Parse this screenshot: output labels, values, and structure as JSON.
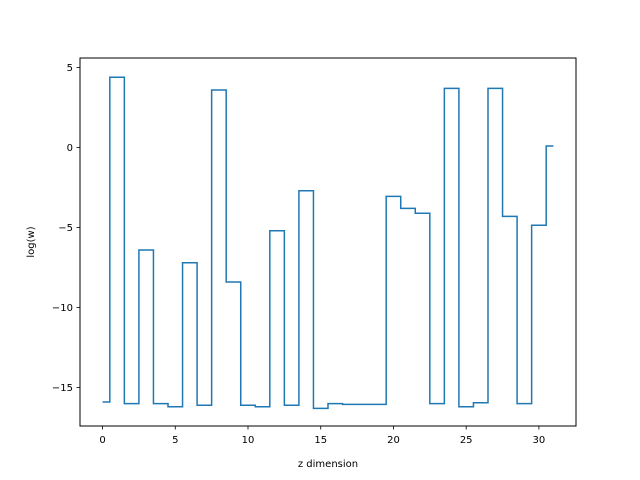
{
  "chart_data": {
    "type": "line",
    "drawstyle": "steps-mid",
    "xlabel": "z dimension",
    "ylabel": "log(w)",
    "xlim": [
      -1.55,
      32.55
    ],
    "ylim": [
      -17.4,
      5.6
    ],
    "xticks": [
      0,
      5,
      10,
      15,
      20,
      25,
      30
    ],
    "yticks": [
      5,
      0,
      -5,
      -10,
      -15
    ],
    "xtick_labels": [
      "0",
      "5",
      "10",
      "15",
      "20",
      "25",
      "30"
    ],
    "ytick_labels": [
      "5",
      "0",
      "−5",
      "−10",
      "−15"
    ],
    "grid": false,
    "series": [
      {
        "color": "#1f77b4",
        "x": [
          0,
          1,
          2,
          3,
          4,
          5,
          6,
          7,
          8,
          9,
          10,
          11,
          12,
          13,
          14,
          15,
          16,
          17,
          18,
          19,
          20,
          21,
          22,
          23,
          24,
          25,
          26,
          27,
          28,
          29,
          30,
          31
        ],
        "y": [
          -15.9,
          4.4,
          -16.0,
          -6.4,
          -16.0,
          -16.2,
          -7.2,
          -16.1,
          3.6,
          -8.4,
          -16.1,
          -16.2,
          -5.2,
          -16.1,
          -2.7,
          -16.3,
          -16.0,
          -16.05,
          -16.05,
          -16.05,
          -3.05,
          -3.8,
          -4.1,
          -16.0,
          3.7,
          -16.2,
          -15.95,
          3.7,
          -4.3,
          -16.0,
          -4.85,
          0.1
        ]
      }
    ]
  }
}
